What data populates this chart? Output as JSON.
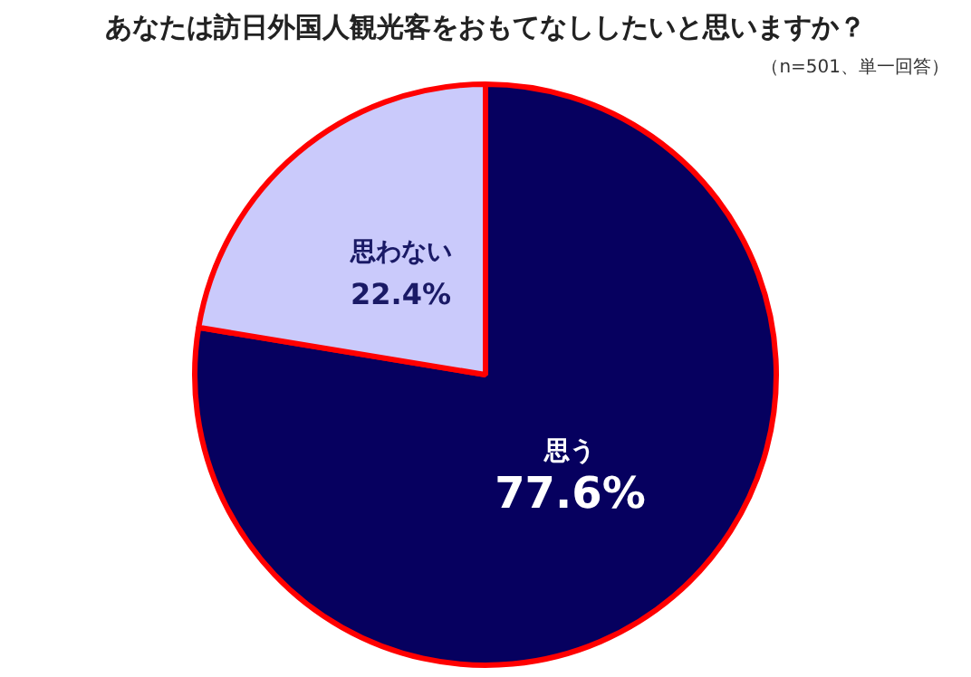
{
  "chart_data": {
    "type": "pie",
    "title": "あなたは訪日外国人観光客をおもてなししたいと思いますか？",
    "subtitle": "（n=501、単一回答）",
    "categories": [
      "思う",
      "思わない"
    ],
    "values": [
      77.6,
      22.4
    ],
    "colors": [
      "#06005f",
      "#cacafb"
    ],
    "value_labels": [
      "77.6%",
      "22.4%"
    ],
    "legend": false
  }
}
